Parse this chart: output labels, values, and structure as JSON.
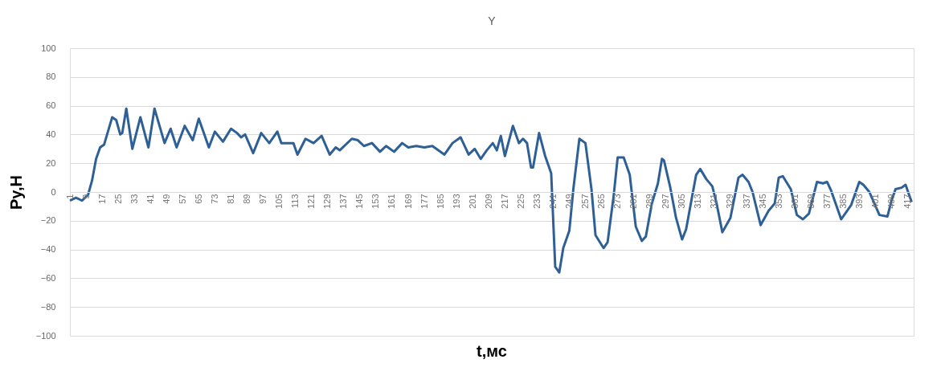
{
  "chart_data": {
    "type": "line",
    "title": "Y",
    "xlabel": "t,мс",
    "ylabel": "Ру,Н",
    "x": [
      1,
      4,
      7,
      10,
      12,
      14,
      16,
      18,
      22,
      24,
      26,
      27,
      29,
      32,
      36,
      40,
      43,
      48,
      51,
      54,
      58,
      62,
      65,
      70,
      73,
      77,
      81,
      84,
      86,
      88,
      92,
      96,
      100,
      104,
      106,
      112,
      114,
      118,
      122,
      126,
      130,
      133,
      135,
      141,
      144,
      147,
      151,
      155,
      158,
      162,
      166,
      169,
      173,
      177,
      181,
      187,
      191,
      195,
      199,
      202,
      205,
      208,
      211,
      213,
      215,
      217,
      221,
      224,
      226,
      228,
      230,
      231,
      234,
      237,
      240,
      242,
      244,
      246,
      249,
      251,
      254,
      257,
      260,
      262,
      266,
      268,
      271,
      273,
      276,
      279,
      282,
      285,
      287,
      290,
      293,
      295,
      296,
      299,
      302,
      305,
      307,
      310,
      312,
      314,
      317,
      320,
      322,
      325,
      329,
      333,
      335,
      338,
      340,
      344,
      348,
      351,
      353,
      355,
      359,
      362,
      365,
      368,
      372,
      375,
      377,
      379,
      384,
      389,
      393,
      395,
      398,
      403,
      407,
      409,
      411,
      414,
      416,
      417,
      419
    ],
    "series": [
      {
        "color": "#2e6096",
        "values": [
          -6,
          -4,
          -6,
          -2,
          8,
          23,
          31,
          33,
          52,
          50,
          40,
          41,
          58,
          30,
          52,
          31,
          58,
          34,
          44,
          31,
          46,
          36,
          51,
          31,
          42,
          35,
          44,
          41,
          38,
          40,
          27,
          41,
          34,
          42,
          34,
          34,
          26,
          37,
          34,
          39,
          26,
          31,
          29,
          37,
          36,
          32,
          34,
          28,
          32,
          28,
          34,
          31,
          32,
          31,
          32,
          26,
          34,
          38,
          26,
          30,
          23,
          29,
          34,
          29,
          39,
          25,
          46,
          34,
          37,
          34,
          17,
          17,
          41,
          25,
          13,
          -52,
          -56,
          -39,
          -27,
          2,
          37,
          34,
          2,
          -30,
          -39,
          -35,
          -3,
          24,
          24,
          12,
          -24,
          -34,
          -31,
          -8,
          6,
          23,
          22,
          4,
          -18,
          -33,
          -26,
          -3,
          12,
          16,
          9,
          4,
          -7,
          -28,
          -18,
          10,
          12,
          7,
          0,
          -23,
          -13,
          -8,
          10,
          11,
          2,
          -16,
          -19,
          -15,
          7,
          6,
          7,
          1,
          -19,
          -9,
          7,
          5,
          0,
          -16,
          -17,
          -6,
          2,
          3,
          5,
          1,
          -7
        ]
      }
    ],
    "xlim": [
      1,
      420
    ],
    "xticks": [
      1,
      9,
      17,
      25,
      33,
      41,
      49,
      57,
      65,
      73,
      81,
      89,
      97,
      105,
      113,
      121,
      129,
      137,
      145,
      153,
      161,
      169,
      177,
      185,
      193,
      201,
      209,
      217,
      225,
      233,
      241,
      249,
      257,
      265,
      273,
      281,
      289,
      297,
      305,
      313,
      321,
      329,
      337,
      345,
      353,
      361,
      369,
      377,
      385,
      393,
      401,
      409,
      417
    ],
    "ylim": [
      -100,
      100
    ],
    "yticks": [
      -100,
      -80,
      -60,
      -40,
      -20,
      0,
      20,
      40,
      60,
      80,
      100
    ],
    "grid": "y",
    "marker": "none",
    "line_style": "solid"
  }
}
